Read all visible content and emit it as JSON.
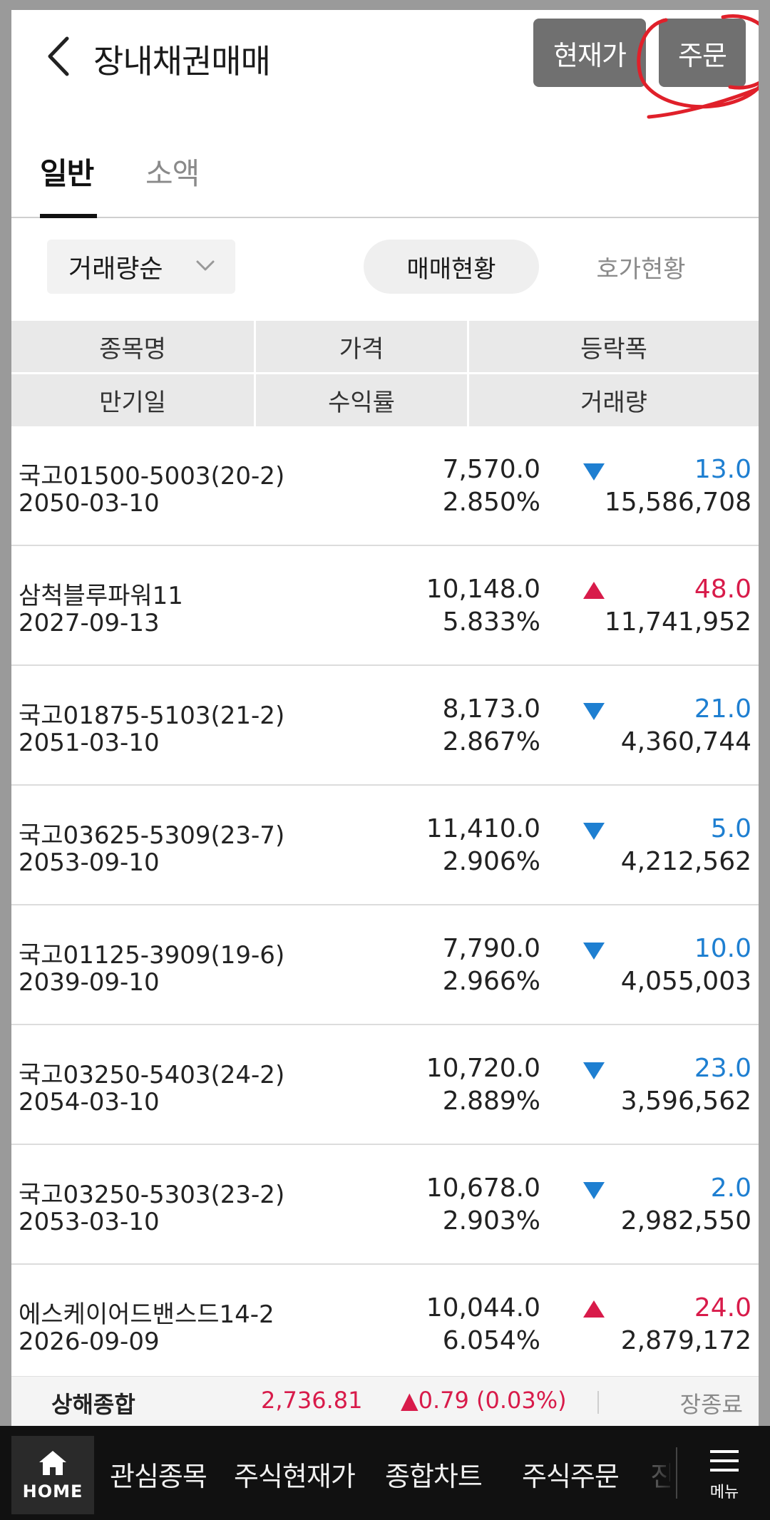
{
  "header": {
    "title": "장내채권매매",
    "btn_current": "현재가",
    "btn_order": "주문"
  },
  "tabs": [
    {
      "label": "일반",
      "active": true
    },
    {
      "label": "소액",
      "active": false
    }
  ],
  "filter": {
    "sort_label": "거래량순",
    "seg_trade": "매매현황",
    "seg_quote": "호가현황"
  },
  "columns": {
    "name": "종목명",
    "price": "가격",
    "change": "등락폭",
    "maturity": "만기일",
    "yield": "수익률",
    "volume": "거래량"
  },
  "rows": [
    {
      "name": "국고01500-5003(20-2)",
      "date": "2050-03-10",
      "price": "7,570.0",
      "yield": "2.850%",
      "direction": "down",
      "change": "13.0",
      "volume": "15,586,708"
    },
    {
      "name": "삼척블루파워11",
      "date": "2027-09-13",
      "price": "10,148.0",
      "yield": "5.833%",
      "direction": "up",
      "change": "48.0",
      "volume": "11,741,952"
    },
    {
      "name": "국고01875-5103(21-2)",
      "date": "2051-03-10",
      "price": "8,173.0",
      "yield": "2.867%",
      "direction": "down",
      "change": "21.0",
      "volume": "4,360,744"
    },
    {
      "name": "국고03625-5309(23-7)",
      "date": "2053-09-10",
      "price": "11,410.0",
      "yield": "2.906%",
      "direction": "down",
      "change": "5.0",
      "volume": "4,212,562"
    },
    {
      "name": "국고01125-3909(19-6)",
      "date": "2039-09-10",
      "price": "7,790.0",
      "yield": "2.966%",
      "direction": "down",
      "change": "10.0",
      "volume": "4,055,003"
    },
    {
      "name": "국고03250-5403(24-2)",
      "date": "2054-03-10",
      "price": "10,720.0",
      "yield": "2.889%",
      "direction": "down",
      "change": "23.0",
      "volume": "3,596,562"
    },
    {
      "name": "국고03250-5303(23-2)",
      "date": "2053-03-10",
      "price": "10,678.0",
      "yield": "2.903%",
      "direction": "down",
      "change": "2.0",
      "volume": "2,982,550"
    },
    {
      "name": "에스케이어드밴스드14-2",
      "date": "2026-09-09",
      "price": "10,044.0",
      "yield": "6.054%",
      "direction": "up",
      "change": "24.0",
      "volume": "2,879,172"
    }
  ],
  "market": {
    "name": "상해종합",
    "value": "2,736.81",
    "change": "▲0.79 (0.03%)",
    "status": "장종료"
  },
  "bottom_nav": {
    "home_label": "HOME",
    "items": [
      "관심종목",
      "주식현재가",
      "종합차트",
      "주식주문",
      "진"
    ],
    "menu_label": "메뉴"
  },
  "colors": {
    "up": "#d81b4a",
    "down": "#1e7fd1",
    "annotation": "#e0202a"
  },
  "icons": {
    "back": "chevron-left-icon",
    "sort": "chevron-down-icon",
    "up": "triangle-up-icon",
    "down": "triangle-down-icon",
    "home": "home-icon",
    "menu": "hamburger-icon"
  }
}
